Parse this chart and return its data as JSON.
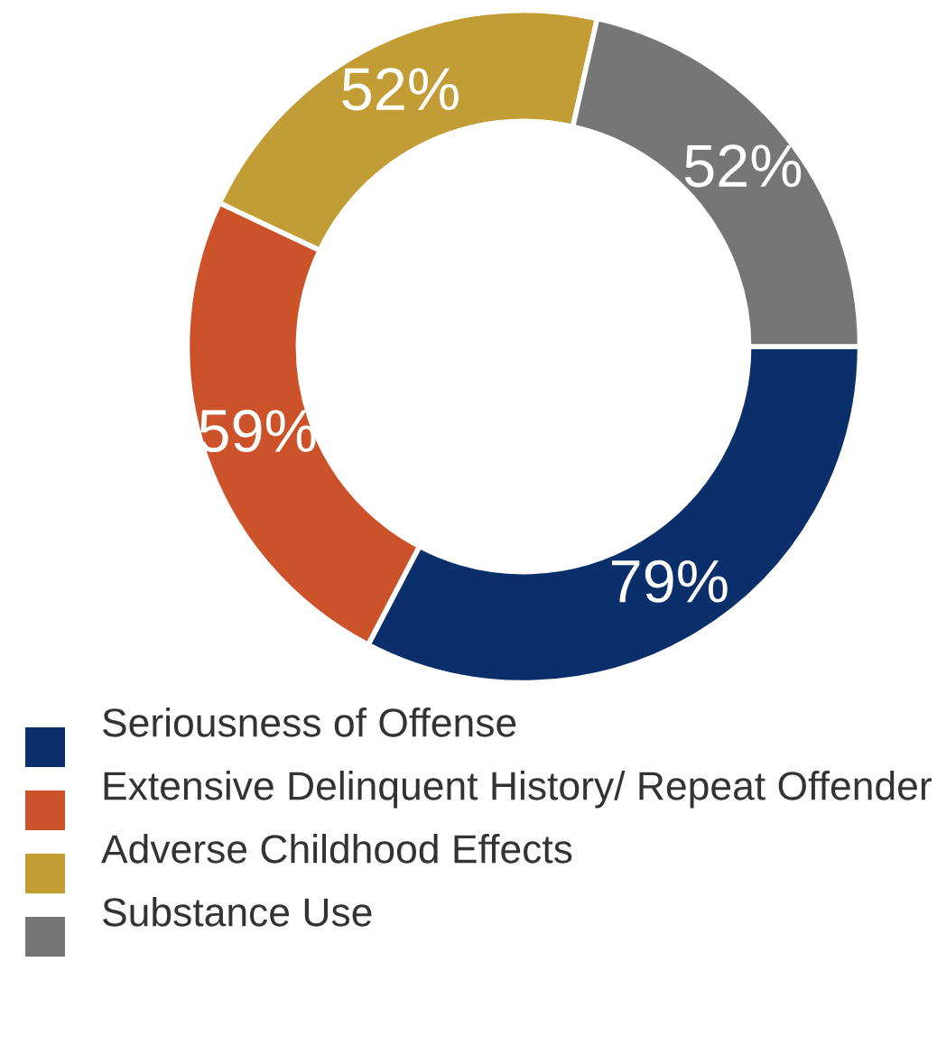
{
  "chart_data": {
    "type": "donut",
    "categories": [
      "Seriousness of Offense",
      "Extensive Delinquent History/ Repeat Offender",
      "Adverse Childhood Effects",
      "Substance Use"
    ],
    "values": [
      79,
      59,
      52,
      52
    ],
    "value_labels": [
      "79%",
      "59%",
      "52%",
      "52%"
    ],
    "colors": [
      "#0a2f6b",
      "#cc5329",
      "#c29d36",
      "#767676"
    ],
    "legend": "bottom"
  }
}
